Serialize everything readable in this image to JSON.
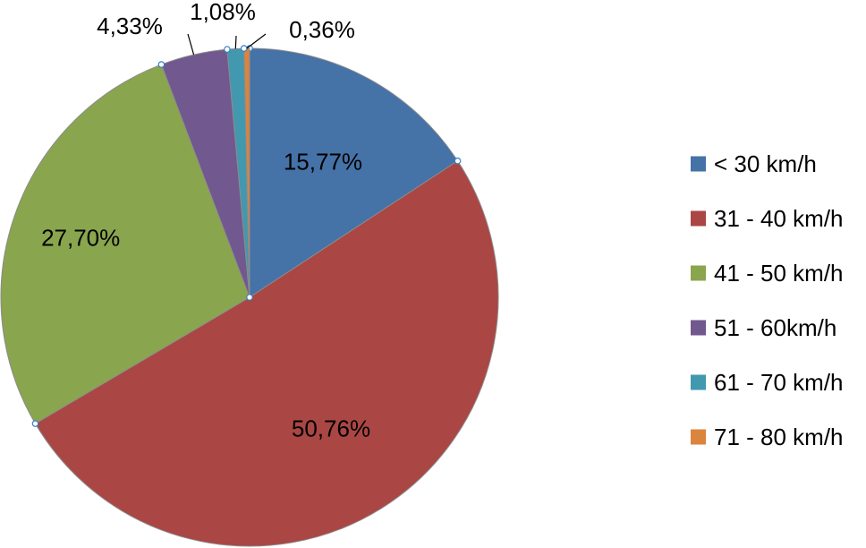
{
  "chart_data": {
    "type": "pie",
    "title": "",
    "legend_position": "right",
    "start_angle_deg": 0,
    "direction": "clockwise",
    "slices": [
      {
        "label": "< 30 km/h",
        "value": 15.77,
        "display": "15,77%",
        "color": "#4572A7"
      },
      {
        "label": "31 - 40 km/h",
        "value": 50.76,
        "display": "50,76%",
        "color": "#AA4643"
      },
      {
        "label": "41 - 50 km/h",
        "value": 27.7,
        "display": "27,70%",
        "color": "#89A54E"
      },
      {
        "label": "51 - 60km/h",
        "value": 4.33,
        "display": "4,33%",
        "color": "#71588F"
      },
      {
        "label": "61 - 70 km/h",
        "value": 1.08,
        "display": "1,08%",
        "color": "#4198AF"
      },
      {
        "label": "71 - 80 km/h",
        "value": 0.36,
        "display": "0,36%",
        "color": "#DB843D"
      }
    ]
  }
}
